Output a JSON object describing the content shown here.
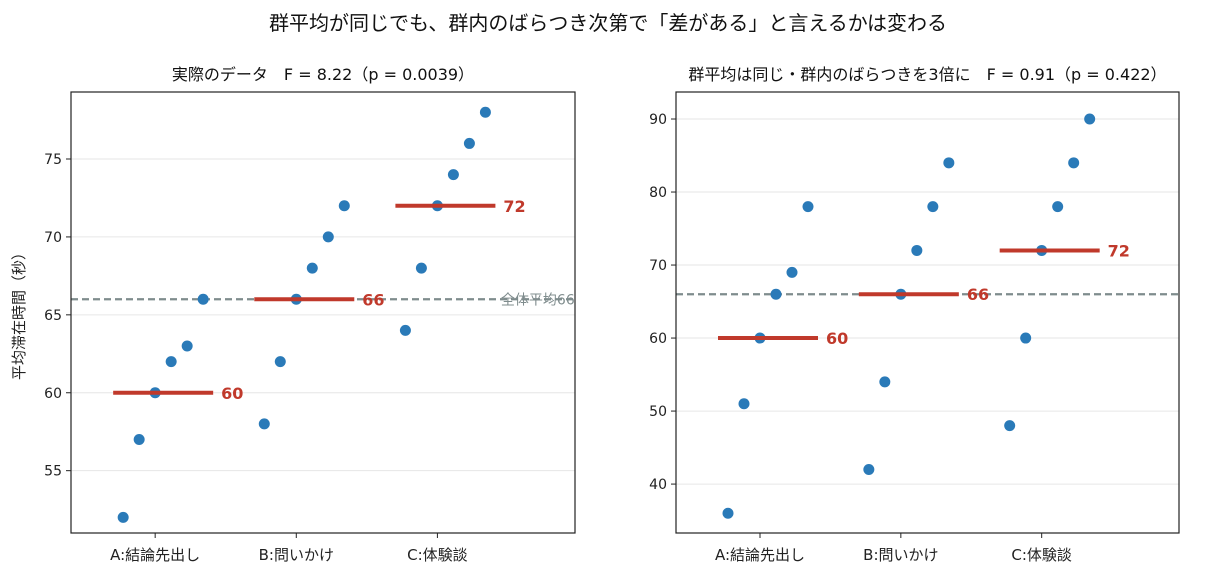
{
  "figure": {
    "title": "群平均が同じでも、群内のばらつき次第で「差がある」と言えるかは変わる"
  },
  "chart_data": [
    {
      "type": "scatter",
      "title": "実際のデータ　F = 8.22（p = 0.0039）",
      "xlabel": "",
      "ylabel": "平均滞在時間（秒）",
      "categories": [
        "A:結論先出し",
        "B:問いかけ",
        "C:体験談"
      ],
      "ylim": [
        51,
        79.3
      ],
      "yticks": [
        55,
        60,
        65,
        70,
        75
      ],
      "grid": true,
      "series": [
        {
          "values": [
            52,
            57,
            60,
            62,
            63,
            66
          ]
        },
        {
          "values": [
            58,
            62,
            66,
            68,
            70,
            72
          ]
        },
        {
          "values": [
            64,
            68,
            72,
            74,
            76,
            78
          ]
        }
      ],
      "means": [
        60,
        66,
        72
      ],
      "mean_labels": [
        "60",
        "66",
        "72"
      ],
      "grand_mean": 66,
      "grand_mean_label": "全体平均66",
      "colors": {
        "point": "#2a7ab8",
        "mean": "#c0392b",
        "grand": "#7f8c8d"
      }
    },
    {
      "type": "scatter",
      "title": "群平均は同じ・群内のばらつきを3倍に　F = 0.91（p = 0.422）",
      "xlabel": "",
      "ylabel": "",
      "categories": [
        "A:結論先出し",
        "B:問いかけ",
        "C:体験談"
      ],
      "ylim": [
        33.3,
        93.7
      ],
      "yticks": [
        40,
        50,
        60,
        70,
        80,
        90
      ],
      "grid": true,
      "series": [
        {
          "values": [
            36,
            51,
            60,
            66,
            69,
            78
          ]
        },
        {
          "values": [
            42,
            54,
            66,
            72,
            78,
            84
          ]
        },
        {
          "values": [
            48,
            60,
            72,
            78,
            84,
            90
          ]
        }
      ],
      "means": [
        60,
        66,
        72
      ],
      "mean_labels": [
        "60",
        "66",
        "72"
      ],
      "grand_mean": 66,
      "grand_mean_label": "",
      "colors": {
        "point": "#2a7ab8",
        "mean": "#c0392b",
        "grand": "#7f8c8d"
      }
    }
  ]
}
